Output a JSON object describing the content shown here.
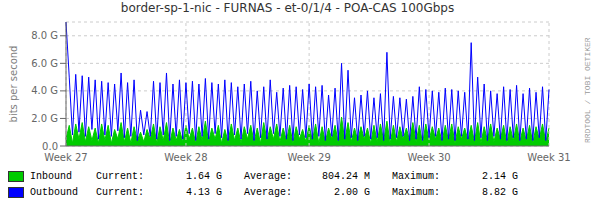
{
  "chart_data": {
    "type": "line",
    "title": "border-sp-1-nic - FURNAS - et-0/1/4 - POA-CAS 100Gbps",
    "ylabel": "bits per second",
    "categories": [
      "Week 27",
      null,
      null,
      null,
      null,
      null,
      null,
      null,
      null,
      null,
      null,
      null,
      null,
      null,
      null,
      null,
      null,
      null,
      null,
      null,
      null,
      null,
      null,
      null,
      null,
      null,
      null,
      null,
      null,
      null,
      null,
      null,
      null,
      null,
      null,
      null,
      null,
      "Week 28",
      null,
      null,
      null,
      null,
      null,
      null,
      null,
      null,
      null,
      null,
      null,
      null,
      null,
      null,
      null,
      null,
      null,
      null,
      null,
      null,
      null,
      null,
      null,
      null,
      null,
      null,
      null,
      null,
      null,
      null,
      null,
      null,
      null,
      null,
      null,
      null,
      null,
      "Week 29",
      null,
      null,
      null,
      null,
      null,
      null,
      null,
      null,
      null,
      null,
      null,
      null,
      null,
      null,
      null,
      null,
      null,
      null,
      null,
      null,
      null,
      null,
      null,
      null,
      null,
      null,
      null,
      null,
      null,
      null,
      null,
      null,
      null,
      null,
      null,
      null,
      "Week 30",
      null,
      null,
      null,
      null,
      null,
      null,
      null,
      null,
      null,
      null,
      null,
      null,
      null,
      null,
      null,
      null,
      null,
      null,
      null,
      null,
      null,
      null,
      null,
      null,
      null,
      null,
      null,
      null,
      null,
      null,
      null,
      null,
      null,
      null,
      null,
      null,
      "Week 31"
    ],
    "ylim": [
      0,
      9.0
    ],
    "yticks": [
      {
        "value": 0.0,
        "label": "0.0"
      },
      {
        "value": 2.0,
        "label": "2.0 G"
      },
      {
        "value": 4.0,
        "label": "4.0 G"
      },
      {
        "value": 6.0,
        "label": "6.0 G"
      },
      {
        "value": 8.0,
        "label": "8.0 G"
      }
    ],
    "grid": true,
    "annotations": [
      "RRDTOOL / TOBI OETIKER"
    ],
    "legend_columns": [
      "Current:",
      "Average:",
      "Maximum:"
    ],
    "series": [
      {
        "name": "Inbound",
        "type": "area",
        "color": "#00cc00",
        "current": "1.64 G",
        "average": "804.24 M",
        "maximum": "2.14 G",
        "values": [
          0.5,
          1.5,
          0.2,
          1.6,
          0.5,
          1.7,
          0.3,
          1.4,
          0.4,
          1.3,
          0.2,
          1.6,
          0.4,
          1.5,
          0.2,
          1.2,
          0.5,
          1.7,
          0.3,
          1.3,
          0.2,
          1.4,
          0.4,
          1.0,
          0.3,
          1.2,
          0.5,
          1.6,
          0.2,
          1.4,
          0.4,
          1.7,
          0.2,
          1.3,
          0.4,
          1.2,
          0.3,
          1.5,
          0.5,
          1.3,
          0.2,
          1.4,
          0.4,
          1.8,
          0.3,
          1.3,
          0.5,
          1.5,
          0.2,
          1.2,
          0.3,
          1.6,
          0.4,
          1.3,
          0.2,
          1.4,
          0.5,
          1.5,
          0.3,
          1.3,
          0.2,
          1.7,
          0.4,
          1.4,
          0.5,
          1.6,
          0.3,
          1.3,
          0.4,
          1.5,
          0.2,
          1.4,
          0.5,
          1.2,
          0.3,
          1.5,
          0.4,
          1.6,
          0.2,
          1.4,
          0.3,
          1.3,
          0.5,
          1.5,
          0.2,
          2.1,
          0.4,
          1.7,
          0.3,
          1.3,
          0.4,
          1.4,
          0.5,
          1.3,
          0.2,
          1.5,
          0.3,
          1.6,
          0.4,
          1.8,
          0.2,
          1.5,
          0.3,
          1.4,
          0.5,
          1.3,
          0.4,
          1.7,
          0.3,
          1.5,
          0.2,
          1.6,
          0.4,
          1.4,
          0.5,
          1.3,
          0.3,
          1.5,
          0.4,
          1.6,
          0.2,
          1.4,
          0.5,
          1.3,
          0.4,
          1.5,
          0.3,
          1.7,
          0.2,
          1.4,
          0.4,
          1.6,
          0.3,
          1.3,
          0.5,
          1.5,
          0.2,
          1.4,
          0.4,
          1.6,
          0.3,
          1.3,
          0.4,
          1.5,
          0.2,
          1.4,
          0.5,
          1.6,
          0.3,
          1.3
        ]
      },
      {
        "name": "Outbound",
        "type": "line",
        "color": "#0000ff",
        "current": "4.13 G",
        "average": "2.00 G",
        "maximum": "8.82 G",
        "values": [
          9.0,
          5.0,
          0.8,
          5.2,
          1.0,
          5.1,
          0.7,
          5.0,
          1.2,
          4.8,
          0.5,
          4.7,
          0.8,
          4.6,
          0.7,
          4.5,
          1.1,
          5.3,
          0.6,
          4.6,
          0.7,
          4.8,
          0.4,
          2.6,
          0.8,
          2.5,
          0.7,
          4.7,
          0.5,
          4.6,
          0.8,
          5.3,
          0.4,
          4.5,
          0.7,
          4.8,
          0.5,
          4.6,
          0.9,
          4.7,
          0.4,
          4.5,
          0.7,
          4.9,
          0.5,
          4.6,
          0.9,
          4.5,
          0.6,
          4.8,
          0.4,
          4.6,
          0.8,
          4.3,
          0.5,
          4.5,
          0.9,
          4.7,
          0.4,
          4.0,
          0.6,
          4.3,
          0.5,
          4.8,
          0.9,
          3.9,
          0.7,
          4.2,
          0.5,
          4.4,
          0.4,
          4.3,
          0.8,
          4.1,
          0.6,
          4.5,
          0.5,
          4.3,
          0.7,
          4.4,
          0.4,
          3.7,
          0.7,
          4.2,
          0.4,
          6.0,
          0.5,
          5.5,
          0.6,
          3.5,
          0.4,
          3.7,
          0.7,
          4.0,
          0.5,
          3.5,
          0.6,
          3.8,
          0.4,
          6.8,
          0.5,
          3.6,
          0.6,
          3.5,
          0.7,
          3.4,
          0.4,
          3.6,
          0.5,
          4.3,
          0.4,
          4.1,
          0.6,
          4.0,
          0.7,
          3.9,
          0.4,
          4.2,
          0.5,
          4.1,
          0.4,
          4.0,
          0.7,
          3.9,
          0.5,
          7.5,
          0.4,
          5.0,
          0.6,
          4.5,
          0.4,
          4.0,
          0.7,
          3.8,
          0.5,
          4.3,
          0.4,
          4.1,
          0.6,
          4.4,
          0.4,
          3.8,
          0.5,
          4.2,
          0.4,
          3.9,
          0.6,
          4.3,
          0.4,
          4.1
        ]
      }
    ]
  }
}
